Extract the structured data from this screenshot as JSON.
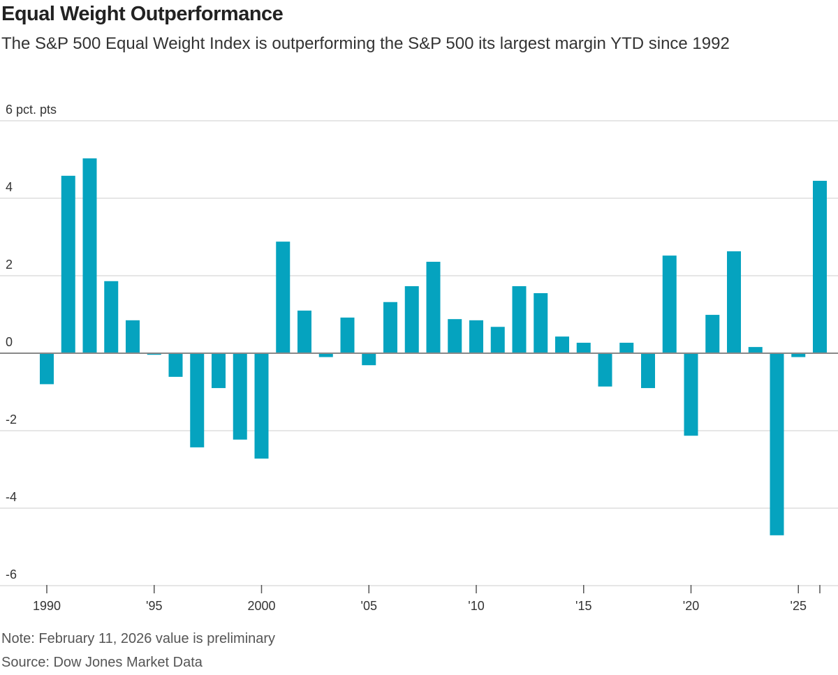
{
  "chart_data": {
    "type": "bar",
    "title": "Equal Weight Outperformance",
    "subtitle": "The S&P 500 Equal Weight Index is outperforming the S&P 500 its largest margin YTD since 1992",
    "ylabel": "pct. pts",
    "xlabel": "",
    "ylim": [
      -6,
      6
    ],
    "yticks": [
      6,
      4,
      2,
      0,
      -2,
      -4,
      -6
    ],
    "ytick_labels": [
      "6 pct. pts",
      "4",
      "2",
      "0",
      "-2",
      "-4",
      "-6"
    ],
    "xticks": [
      1990,
      1995,
      2000,
      2005,
      2010,
      2015,
      2020,
      2025
    ],
    "xtick_labels": [
      "1990",
      "'95",
      "2000",
      "'05",
      "'10",
      "'15",
      "'20",
      "'25"
    ],
    "grid": true,
    "bar_color": "#05a3bf",
    "categories": [
      1990,
      1991,
      1992,
      1993,
      1994,
      1995,
      1996,
      1997,
      1998,
      1999,
      2000,
      2001,
      2002,
      2003,
      2004,
      2005,
      2006,
      2007,
      2008,
      2009,
      2010,
      2011,
      2012,
      2013,
      2014,
      2015,
      2016,
      2017,
      2018,
      2019,
      2020,
      2021,
      2022,
      2023,
      2024,
      2025,
      2026
    ],
    "values": [
      -0.8,
      4.58,
      5.03,
      1.86,
      0.85,
      -0.04,
      -0.61,
      -2.43,
      -0.9,
      -2.23,
      -2.72,
      2.88,
      1.1,
      -0.1,
      0.92,
      -0.31,
      1.32,
      1.73,
      2.36,
      0.88,
      0.85,
      0.68,
      1.73,
      1.55,
      0.43,
      0.27,
      -0.86,
      0.27,
      -0.9,
      2.52,
      -2.13,
      0.99,
      2.63,
      0.16,
      -4.7,
      -0.1,
      4.45
    ]
  },
  "note": "Note: February 11, 2026 value is preliminary",
  "source": "Source: Dow Jones Market Data"
}
